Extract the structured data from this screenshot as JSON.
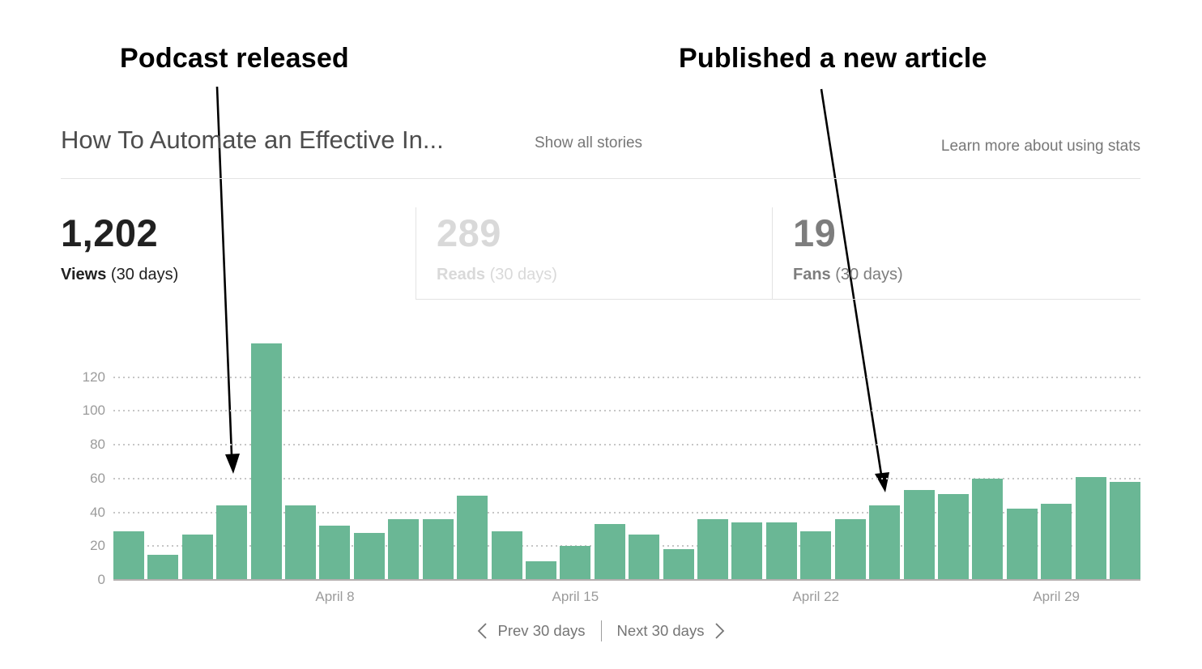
{
  "annotations": [
    {
      "label": "Podcast released",
      "target_date": "April 5",
      "target_value": 44
    },
    {
      "label": "Published a new article",
      "target_date": "April 24",
      "target_value": 44
    }
  ],
  "header": {
    "title": "How To Automate an Effective In...",
    "show_all_stories": "Show all stories",
    "learn_more": "Learn more about using stats"
  },
  "stats": {
    "views": {
      "value": "1,202",
      "label": "Views",
      "period": "(30 days)"
    },
    "reads": {
      "value": "289",
      "label": "Reads",
      "period": "(30 days)"
    },
    "fans": {
      "value": "19",
      "label": "Fans",
      "period": "(30 days)"
    }
  },
  "chart_data": {
    "type": "bar",
    "title": "Views per day (30 days)",
    "x": [
      "April 2",
      "April 3",
      "April 4",
      "April 5",
      "April 6",
      "April 7",
      "April 8",
      "April 9",
      "April 10",
      "April 11",
      "April 12",
      "April 13",
      "April 14",
      "April 15",
      "April 16",
      "April 17",
      "April 18",
      "April 19",
      "April 20",
      "April 21",
      "April 22",
      "April 23",
      "April 24",
      "April 25",
      "April 26",
      "April 27",
      "April 28",
      "April 29",
      "April 30",
      "May 1"
    ],
    "values": [
      29,
      15,
      27,
      44,
      140,
      44,
      32,
      28,
      36,
      36,
      50,
      29,
      11,
      20,
      33,
      27,
      18,
      36,
      34,
      34,
      29,
      36,
      44,
      53,
      51,
      60,
      42,
      45,
      61,
      58
    ],
    "y_ticks": [
      0,
      20,
      40,
      60,
      80,
      100,
      120
    ],
    "ylim": [
      0,
      140
    ],
    "x_tick_labels": [
      {
        "bar_index": 6,
        "label": "April 8"
      },
      {
        "bar_index": 13,
        "label": "April 15"
      },
      {
        "bar_index": 20,
        "label": "April 22"
      },
      {
        "bar_index": 27,
        "label": "April 29"
      }
    ],
    "grid": "dotted-horizontal",
    "legend": "none",
    "bar_color": "#6ab795"
  },
  "nav": {
    "prev": "Prev 30 days",
    "next": "Next 30 days"
  },
  "colors": {
    "bar": "#6ab795",
    "active_stat": "#212121",
    "dim_stat": "#d9d9d9",
    "muted_stat": "#7d7d7d",
    "link_gray": "#777777",
    "axis_gray": "#9b9b9b"
  }
}
